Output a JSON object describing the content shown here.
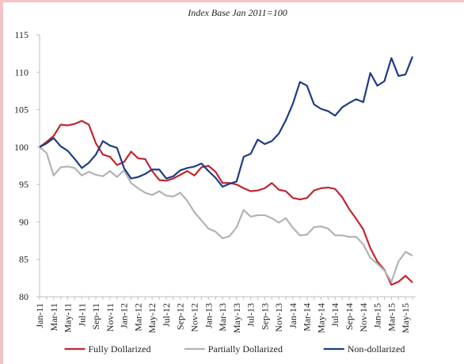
{
  "chart_data": {
    "type": "line",
    "subtitle": "Index Base Jan 2011=100",
    "categories": [
      "Jan-11",
      null,
      "Mar-11",
      null,
      "May-11",
      null,
      "Jul-11",
      null,
      "Sep-11",
      null,
      "Nov-11",
      null,
      "Jan-12",
      null,
      "Mar-12",
      null,
      "May-12",
      null,
      "Jul-12",
      null,
      "Sep-12",
      null,
      "Nov-12",
      null,
      "Jan-13",
      null,
      "Mar-13",
      null,
      "May-13",
      null,
      "Jul-13",
      null,
      "Sep-13",
      null,
      "Nov-13",
      null,
      "Jan-14",
      null,
      "Mar-14",
      null,
      "May-14",
      null,
      "Jul-14",
      null,
      "Sep-14",
      null,
      "Nov-14",
      null,
      "Jan-15",
      null,
      "Mar-15",
      null,
      "May-15",
      null
    ],
    "series": [
      {
        "name": "Fully Dollarized",
        "color": "#c0272d",
        "values": [
          100,
          100.7,
          101.5,
          103,
          102.9,
          103.1,
          103.5,
          103.0,
          100.5,
          99.0,
          98.7,
          97.6,
          98.0,
          99.4,
          98.5,
          98.4,
          96.8,
          95.6,
          95.5,
          95.8,
          96.3,
          96.8,
          96.2,
          97.3,
          97.5,
          96.7,
          95.2,
          95.2,
          95.0,
          94.5,
          94.1,
          94.2,
          94.5,
          95.2,
          94.3,
          94.1,
          93.2,
          93.0,
          93.2,
          94.2,
          94.5,
          94.6,
          94.4,
          93.3,
          91.7,
          90.4,
          89.0,
          86.5,
          84.7,
          83.6,
          81.6,
          82.0,
          82.8,
          81.9
        ]
      },
      {
        "name": "Partially Dollarized",
        "color": "#b3b3b3",
        "values": [
          100,
          99.2,
          96.2,
          97.3,
          97.4,
          97.2,
          96.2,
          96.7,
          96.3,
          96.1,
          96.8,
          96.0,
          96.9,
          95.2,
          94.5,
          93.9,
          93.6,
          94.1,
          93.5,
          93.4,
          93.9,
          92.8,
          91.3,
          90.2,
          89.1,
          88.7,
          87.8,
          88.1,
          89.3,
          91.6,
          90.7,
          90.9,
          90.9,
          90.5,
          89.9,
          90.5,
          89.2,
          88.2,
          88.3,
          89.3,
          89.4,
          89.1,
          88.2,
          88.2,
          88.0,
          88.0,
          87.0,
          85.2,
          84.4,
          83.5,
          82.0,
          84.7,
          86.0,
          85.5
        ]
      },
      {
        "name": "Non-dollarized",
        "color": "#1f3c88",
        "values": [
          100,
          100.5,
          101.2,
          100.1,
          99.5,
          98.4,
          97.2,
          97.9,
          99.0,
          100.8,
          100.2,
          99.9,
          97.2,
          95.8,
          96.0,
          96.4,
          97.0,
          97.0,
          95.8,
          96.1,
          96.9,
          97.2,
          97.4,
          97.8,
          96.8,
          95.9,
          94.7,
          95.1,
          95.4,
          98.7,
          99.1,
          101.0,
          100.4,
          100.8,
          101.8,
          103.6,
          105.8,
          108.7,
          108.2,
          105.7,
          105.1,
          104.8,
          104.2,
          105.3,
          105.9,
          106.4,
          106.0,
          109.9,
          108.2,
          108.8,
          111.9,
          109.5,
          109.7,
          112.1
        ]
      }
    ],
    "ylim": [
      80,
      115
    ],
    "yticks": [
      80,
      85,
      90,
      95,
      100,
      105,
      110,
      115
    ],
    "grid": false,
    "legend": "bottom"
  }
}
